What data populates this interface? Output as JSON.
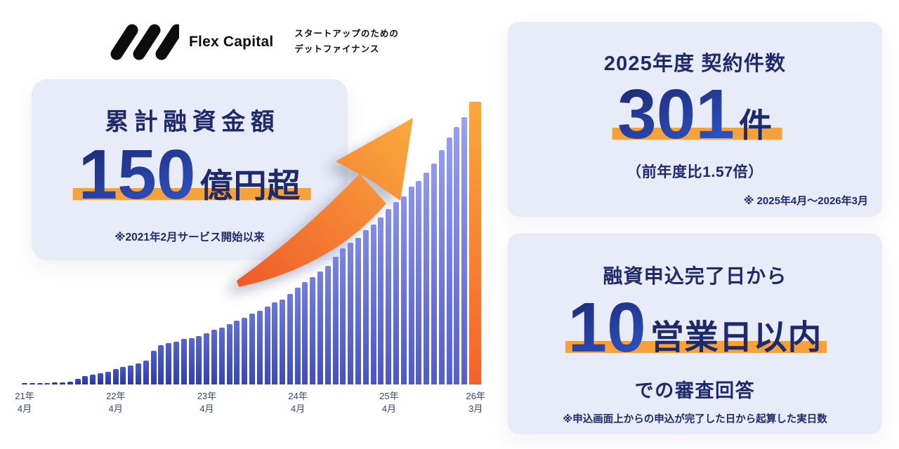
{
  "brand": {
    "name": "Flex Capital",
    "tagline_line1": "スタートアップのための",
    "tagline_line2": "デットファイナンス"
  },
  "cumulative_card": {
    "title": "累計融資金額",
    "value_number": "150",
    "value_unit": "億円超",
    "note": "※2021年2月サービス開始以来"
  },
  "contracts_card": {
    "title": "2025年度 契約件数",
    "value_number": "301",
    "value_unit": "件",
    "comparison": "（前年度比1.57倍）",
    "note": "※ 2025年4月〜2026年3月"
  },
  "review_card": {
    "title": "融資申込完了日から",
    "value_number": "10",
    "value_unit": "営業日以内",
    "subtitle": "での審査回答",
    "note": "※申込画面上からの申込が完了した日から起算した実日数"
  },
  "colors": {
    "page_bg": "#FFFFFF",
    "card_bg": "#E8EBF8",
    "navy_text": "#1E2A6A",
    "number_gradient_start": "#1F2E7B",
    "number_gradient_end": "#2F55C8",
    "accent_orange": "#F6A23C",
    "arrow_gradient_start": "#EF5A28",
    "arrow_gradient_end": "#F9A63E",
    "axis_label": "#3B4668",
    "logo_black": "#0D0D0D",
    "bar_left_top": "#2E41B4",
    "bar_left_bottom": "#1B2DA0",
    "bar_right_top": "#99A1F1",
    "bar_right_bottom": "#5560CB",
    "bar_final_top": "#F9A83E",
    "bar_final_bottom": "#F3622B"
  },
  "chart_data": {
    "type": "bar",
    "description": "累計融資金額の月次推移（サービス開始2021年2月以来、最終月は150億円超）",
    "values_unit": "億円（目盛非表示のため推定値）",
    "ylim": [
      0,
      160
    ],
    "grid": false,
    "highlight_last_bar": true,
    "x": [
      "2021-04",
      "2021-05",
      "2021-06",
      "2021-07",
      "2021-08",
      "2021-09",
      "2021-10",
      "2021-11",
      "2021-12",
      "2022-01",
      "2022-02",
      "2022-03",
      "2022-04",
      "2022-05",
      "2022-06",
      "2022-07",
      "2022-08",
      "2022-09",
      "2022-10",
      "2022-11",
      "2022-12",
      "2023-01",
      "2023-02",
      "2023-03",
      "2023-04",
      "2023-05",
      "2023-06",
      "2023-07",
      "2023-08",
      "2023-09",
      "2023-10",
      "2023-11",
      "2023-12",
      "2024-01",
      "2024-02",
      "2024-03",
      "2024-04",
      "2024-05",
      "2024-06",
      "2024-07",
      "2024-08",
      "2024-09",
      "2024-10",
      "2024-11",
      "2024-12",
      "2025-01",
      "2025-02",
      "2025-03",
      "2025-04",
      "2025-05",
      "2025-06",
      "2025-07",
      "2025-08",
      "2025-09",
      "2025-10",
      "2025-11",
      "2025-12",
      "2026-01",
      "2026-02",
      "2026-03"
    ],
    "values": [
      0.5,
      0.6,
      0.7,
      0.8,
      1,
      1.2,
      1.5,
      3,
      4.5,
      5.5,
      6,
      7,
      8.5,
      9.5,
      10.5,
      11.5,
      13,
      18.5,
      21.5,
      22.5,
      23.5,
      25,
      25.5,
      26.5,
      28,
      30,
      31,
      33,
      35,
      36.5,
      39,
      40.5,
      42.5,
      45,
      46.5,
      49.5,
      53,
      56,
      59,
      62,
      65,
      70,
      74.5,
      77.5,
      80.5,
      84.5,
      87.5,
      91.5,
      96,
      100,
      103,
      108.5,
      111.5,
      116,
      121,
      128.5,
      135.5,
      141,
      146.5,
      155
    ],
    "x_tick_labels": [
      {
        "index": 0,
        "line1": "21年",
        "line2": "4月"
      },
      {
        "index": 12,
        "line1": "22年",
        "line2": "4月"
      },
      {
        "index": 24,
        "line1": "23年",
        "line2": "4月"
      },
      {
        "index": 36,
        "line1": "24年",
        "line2": "4月"
      },
      {
        "index": 48,
        "line1": "25年",
        "line2": "4月"
      },
      {
        "index": 59,
        "line1": "26年",
        "line2": "3月"
      }
    ]
  }
}
